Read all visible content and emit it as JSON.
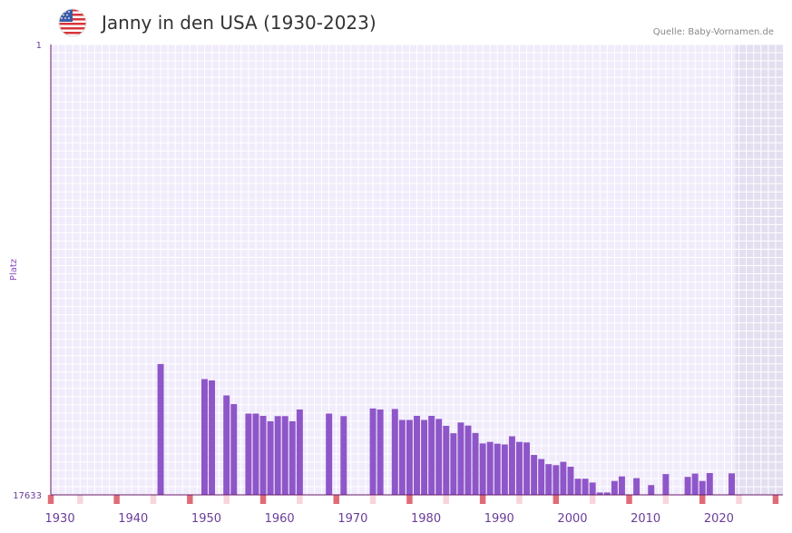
{
  "header": {
    "title": "Janny in den USA (1930-2023)",
    "source": "Quelle: Baby-Vornamen.de",
    "flag_icon": "usa-flag-icon"
  },
  "colors": {
    "bar": "#8e56c8",
    "plot_bg": "#f1ecfb",
    "grid": "#ffffff",
    "future_bg": "#e3def0",
    "axis": "#6a1b6a",
    "marker_strong": "#e06b78",
    "marker_light": "#f8d4dc"
  },
  "chart_data": {
    "type": "bar",
    "title": "Janny in den USA (1930-2023)",
    "ylabel": "Platz",
    "xlabel": "",
    "y_tick_labels": [
      "1",
      "17633"
    ],
    "ylim": [
      1,
      17633
    ],
    "y_inverted": true,
    "xlim": [
      1929,
      2029
    ],
    "x_tick_labels": [
      "1930",
      "1940",
      "1950",
      "1960",
      "1970",
      "1980",
      "1990",
      "2000",
      "2010",
      "2020"
    ],
    "shaded_range_start": 2023,
    "series": [
      {
        "name": "Platz",
        "points": [
          [
            1944,
            12510
          ],
          [
            1950,
            13100
          ],
          [
            1951,
            13150
          ],
          [
            1953,
            13740
          ],
          [
            1954,
            14080
          ],
          [
            1956,
            14450
          ],
          [
            1957,
            14450
          ],
          [
            1958,
            14540
          ],
          [
            1959,
            14750
          ],
          [
            1960,
            14550
          ],
          [
            1961,
            14550
          ],
          [
            1962,
            14750
          ],
          [
            1963,
            14290
          ],
          [
            1967,
            14450
          ],
          [
            1969,
            14550
          ],
          [
            1973,
            14250
          ],
          [
            1974,
            14290
          ],
          [
            1976,
            14270
          ],
          [
            1977,
            14700
          ],
          [
            1978,
            14700
          ],
          [
            1979,
            14540
          ],
          [
            1980,
            14700
          ],
          [
            1981,
            14540
          ],
          [
            1982,
            14660
          ],
          [
            1983,
            14930
          ],
          [
            1984,
            15220
          ],
          [
            1985,
            14800
          ],
          [
            1986,
            14920
          ],
          [
            1987,
            15210
          ],
          [
            1988,
            15620
          ],
          [
            1989,
            15560
          ],
          [
            1990,
            15630
          ],
          [
            1991,
            15660
          ],
          [
            1992,
            15340
          ],
          [
            1993,
            15560
          ],
          [
            1994,
            15580
          ],
          [
            1995,
            16070
          ],
          [
            1996,
            16230
          ],
          [
            1997,
            16430
          ],
          [
            1998,
            16470
          ],
          [
            1999,
            16340
          ],
          [
            2000,
            16530
          ],
          [
            2001,
            17000
          ],
          [
            2002,
            17000
          ],
          [
            2003,
            17150
          ],
          [
            2004,
            17540
          ],
          [
            2005,
            17540
          ],
          [
            2006,
            17090
          ],
          [
            2007,
            16910
          ],
          [
            2009,
            16980
          ],
          [
            2011,
            17250
          ],
          [
            2013,
            16820
          ],
          [
            2016,
            16930
          ],
          [
            2017,
            16800
          ],
          [
            2018,
            17090
          ],
          [
            2019,
            16780
          ],
          [
            2022,
            16790
          ]
        ]
      }
    ],
    "marker_strong_years": [
      1929,
      1938,
      1948,
      1958,
      1968,
      1978,
      1988,
      1998,
      2008,
      2018,
      2028
    ],
    "marker_light_years": [
      1933,
      1943,
      1953,
      1963,
      1973,
      1983,
      1993,
      2003,
      2013,
      2023
    ]
  }
}
